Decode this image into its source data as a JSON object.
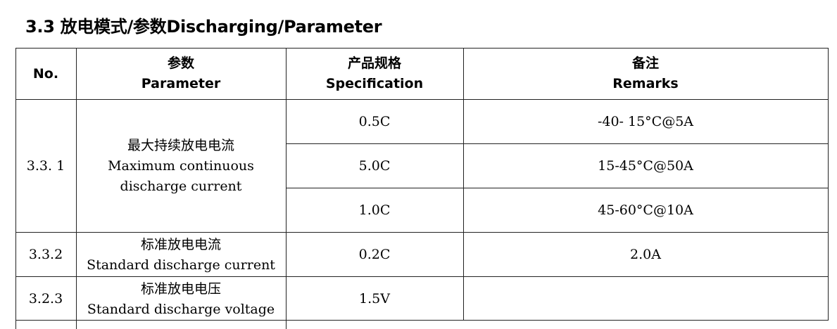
{
  "section_title": "3.3 放电模式/参数Discharging/Parameter",
  "table": {
    "headers": {
      "no": "No.",
      "parameter_zh": "参数",
      "parameter_en": "Parameter",
      "spec_zh": "产品规格",
      "spec_en": "Specification",
      "remarks_zh": "备注",
      "remarks_en": "Remarks"
    },
    "rows": [
      {
        "no": "3.3. 1",
        "param_zh": "最大持续放电电流",
        "param_en_1": "Maximum continuous",
        "param_en_2": "discharge current",
        "specs": [
          "0.5C",
          "5.0C",
          "1.0C"
        ],
        "remarks": [
          "-40- 15°C@5A",
          "15-45°C@50A",
          "45-60°C@10A"
        ]
      },
      {
        "no": "3.3.2",
        "param_zh": "标准放电电流",
        "param_en": "Standard discharge current",
        "spec": "0.2C",
        "remark": "2.0A"
      },
      {
        "no": "3.2.3",
        "param_zh": "标准放电电压",
        "param_en": "Standard discharge voltage",
        "spec": "1.5V",
        "remark": ""
      }
    ]
  }
}
